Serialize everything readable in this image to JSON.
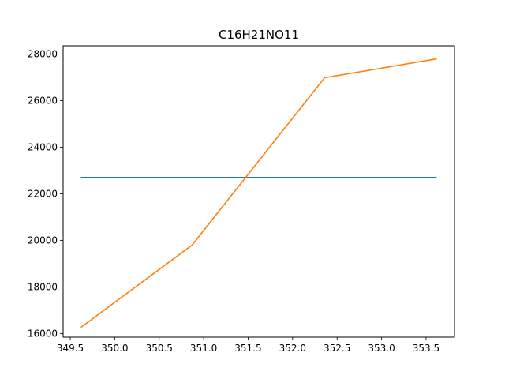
{
  "chart_data": {
    "type": "line",
    "title": "C16H21NO11",
    "xlabel": "",
    "ylabel": "",
    "xlim": [
      349.42,
      353.82
    ],
    "ylim": [
      15850,
      28350
    ],
    "x_ticks": [
      349.5,
      350.0,
      350.5,
      351.0,
      351.5,
      352.0,
      352.5,
      353.0,
      353.5
    ],
    "x_tick_labels": [
      "349.5",
      "350.0",
      "350.5",
      "351.0",
      "351.5",
      "352.0",
      "352.5",
      "353.0",
      "353.5"
    ],
    "y_ticks": [
      16000,
      18000,
      20000,
      22000,
      24000,
      26000,
      28000
    ],
    "y_tick_labels": [
      "16000",
      "18000",
      "20000",
      "22000",
      "24000",
      "26000",
      "28000"
    ],
    "grid": false,
    "series": [
      {
        "color": "#1f77b4",
        "x": [
          349.62,
          353.62
        ],
        "y": [
          22700,
          22700
        ]
      },
      {
        "color": "#ff7f0e",
        "x": [
          349.62,
          350.87,
          352.36,
          353.62
        ],
        "y": [
          16270,
          19800,
          26980,
          27790
        ]
      }
    ]
  }
}
